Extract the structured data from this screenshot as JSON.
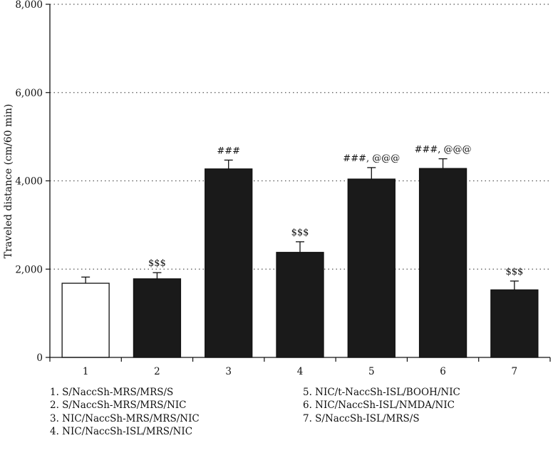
{
  "chart_data": {
    "type": "bar",
    "ylabel": "Traveled distance (cm/60 min)",
    "xlabel": "",
    "ylim": [
      0,
      8000
    ],
    "yticks": [
      0,
      2000,
      4000,
      6000,
      8000
    ],
    "ytick_labels": [
      "0",
      "2,000",
      "4,000",
      "6,000",
      "8,000"
    ],
    "grid": "horizontal dotted",
    "categories": [
      "1",
      "2",
      "3",
      "4",
      "5",
      "6",
      "7"
    ],
    "values": [
      1680,
      1780,
      4270,
      2380,
      4040,
      4280,
      1530
    ],
    "errors": [
      140,
      140,
      200,
      240,
      260,
      220,
      200
    ],
    "annotations": [
      "",
      "$$$",
      "###",
      "$$$",
      "###, @@@",
      "###, @@@",
      "$$$"
    ],
    "bar_colors": [
      "#ffffff",
      "#1a1a1a",
      "#1a1a1a",
      "#1a1a1a",
      "#1a1a1a",
      "#1a1a1a",
      "#1a1a1a"
    ],
    "legend_left": [
      "1. S/NaccSh-MRS/MRS/S",
      "2. S/NaccSh-MRS/MRS/NIC",
      "3. NIC/NaccSh-MRS/MRS/NIC",
      "4. NIC/NaccSh-ISL/MRS/NIC"
    ],
    "legend_right": [
      "5. NIC/t-NaccSh-ISL/BOOH/NIC",
      "6. NIC/NaccSh-ISL/NMDA/NIC",
      "7. S/NaccSh-ISL/MRS/S"
    ]
  }
}
